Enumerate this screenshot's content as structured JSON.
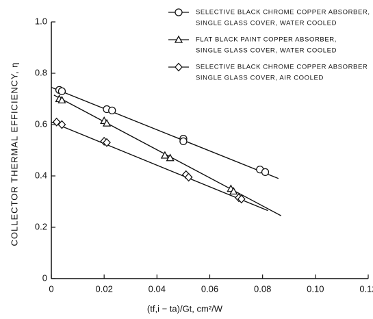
{
  "chart_data": {
    "type": "scatter",
    "x_label": "(tf,i − ta)/Gt,  cm²/W",
    "y_label": "COLLECTOR THERMAL EFFICIENCY, η",
    "xlim": [
      0,
      0.12
    ],
    "xticks": [
      0,
      0.02,
      0.04,
      0.06,
      0.08,
      {
        "value": 0.1,
        "label": "0.10"
      },
      0.12
    ],
    "ylim": [
      0,
      1
    ],
    "yticks": [
      0,
      0.2,
      0.4,
      0.6,
      0.8,
      {
        "value": 1,
        "label": "1.0"
      }
    ],
    "series": [
      {
        "name": [
          "SELECTIVE BLACK CHROME COPPER ABSORBER,",
          "SINGLE GLASS COVER, WATER COOLED"
        ],
        "marker": "circle",
        "color": "#111",
        "x": [
          0.003,
          0.004,
          0.021,
          0.023,
          0.05,
          0.05,
          0.079,
          0.081
        ],
        "values": [
          0.735,
          0.73,
          0.66,
          0.655,
          0.545,
          0.535,
          0.425,
          0.415
        ],
        "line_x": [
          0,
          0.086
        ],
        "line_values": [
          0.745,
          0.39
        ]
      },
      {
        "name": [
          "FLAT BLACK PAINT COPPER ABSORBER,",
          "SINGLE GLASS COVER, WATER COOLED"
        ],
        "marker": "triangle",
        "color": "#111",
        "x": [
          0.003,
          0.004,
          0.02,
          0.021,
          0.043,
          0.045,
          0.068,
          0.069
        ],
        "values": [
          0.7,
          0.695,
          0.615,
          0.605,
          0.48,
          0.47,
          0.35,
          0.34
        ],
        "line_x": [
          0.001,
          0.087
        ],
        "line_values": [
          0.715,
          0.245
        ]
      },
      {
        "name": [
          "SELECTIVE BLACK CHROME COPPER ABSORBER",
          "SINGLE GLASS COVER, AIR COOLED"
        ],
        "marker": "diamond",
        "color": "#111",
        "x": [
          0.002,
          0.004,
          0.02,
          0.021,
          0.051,
          0.052,
          0.071,
          0.072
        ],
        "values": [
          0.61,
          0.6,
          0.535,
          0.53,
          0.405,
          0.395,
          0.315,
          0.31
        ],
        "line_x": [
          0,
          0.082
        ],
        "line_values": [
          0.61,
          0.265
        ]
      }
    ]
  }
}
